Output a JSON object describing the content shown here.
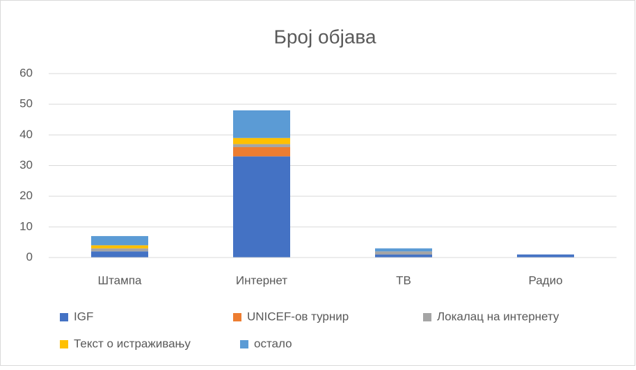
{
  "chart_data": {
    "type": "bar",
    "stacked": true,
    "title": "Број објава",
    "categories": [
      "Штампа",
      "Интернет",
      "ТВ",
      "Радио"
    ],
    "series": [
      {
        "name": "IGF",
        "color": "#4472c4",
        "values": [
          2,
          33,
          1,
          1
        ]
      },
      {
        "name": "UNICEF-ов турнир",
        "color": "#ed7d31",
        "values": [
          0,
          3,
          0,
          0
        ]
      },
      {
        "name": "Локалац на интернету",
        "color": "#a5a5a5",
        "values": [
          1,
          1,
          1,
          0
        ]
      },
      {
        "name": "Текст о истраживању",
        "color": "#ffc000",
        "values": [
          1,
          2,
          0,
          0
        ]
      },
      {
        "name": "остало",
        "color": "#5b9bd5",
        "values": [
          3,
          9,
          1,
          0
        ]
      }
    ],
    "ylim": [
      0,
      60
    ],
    "yticks": [
      0,
      10,
      20,
      30,
      40,
      50,
      60
    ],
    "grid": true,
    "legend": "bottom"
  }
}
